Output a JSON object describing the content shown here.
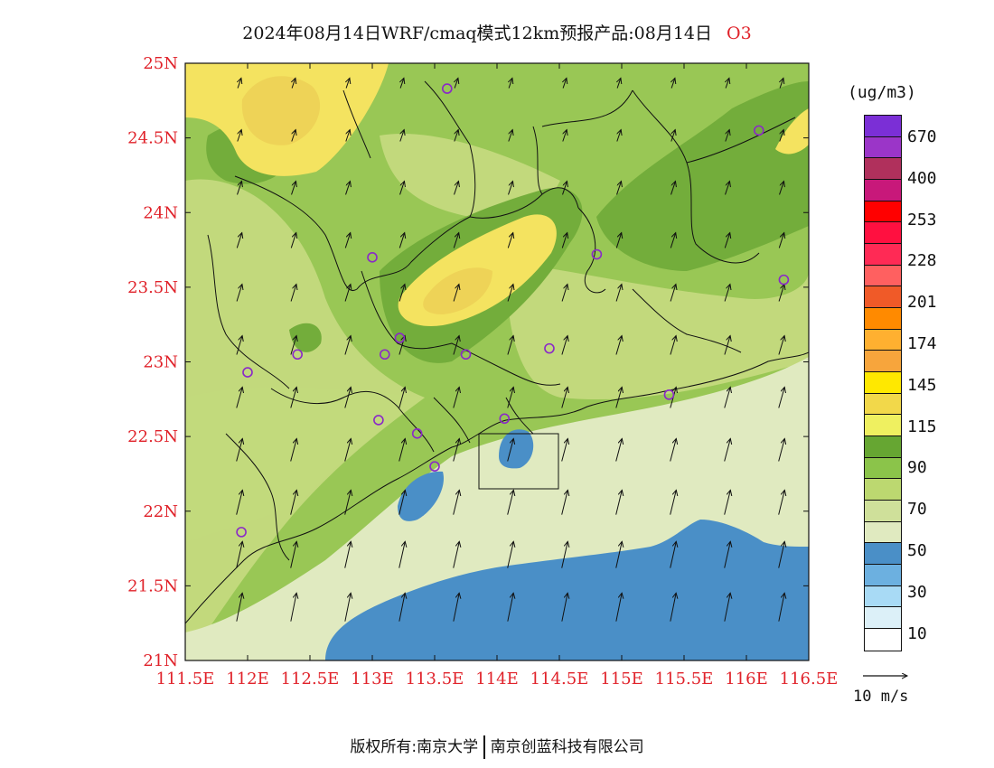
{
  "title": {
    "main": "2024年08月14日WRF/cmaq模式12km预报产品:08月14日",
    "species": "O3"
  },
  "axes": {
    "lat_labels": [
      "25N",
      "24.5N",
      "24N",
      "23.5N",
      "23N",
      "22.5N",
      "22N",
      "21.5N",
      "21N"
    ],
    "lon_labels": [
      "111.5E",
      "112E",
      "112.5E",
      "113E",
      "113.5E",
      "114E",
      "114.5E",
      "115E",
      "115.5E",
      "116E",
      "116.5E"
    ],
    "lat_range": [
      21,
      25
    ],
    "lon_range": [
      111.5,
      116.5
    ],
    "tick_label_color": "#e0222a"
  },
  "colorbar": {
    "unit": "(ug/m3)",
    "colors_top_to_bottom": [
      "#7b2fd6",
      "#9b35c8",
      "#b0305c",
      "#c8187a",
      "#ff0000",
      "#ff1040",
      "#ff2a55",
      "#ff6060",
      "#f05a28",
      "#ff8a00",
      "#ffb030",
      "#f7a53c",
      "#ffe800",
      "#f2d84a",
      "#eff060",
      "#66a632",
      "#8bc44a",
      "#bcd870",
      "#cfe09a",
      "#e0eac0",
      "#4a8fc7",
      "#6cb0e0",
      "#a8daf5",
      "#dcf0f8",
      "#ffffff"
    ],
    "labels": [
      "670",
      "400",
      "253",
      "228",
      "201",
      "174",
      "145",
      "115",
      "90",
      "70",
      "50",
      "30",
      "10"
    ]
  },
  "field_colors": {
    "yellow_high": "#f4e360",
    "yellow_core": "#eed357",
    "green_light": "#c2d97c",
    "green_mid": "#99c755",
    "green_dark": "#73ad3b",
    "pale_green": "#e0eac0",
    "sea_blue": "#4a8fc7",
    "station_ring": "#8a28c8"
  },
  "stations": [
    {
      "lon": 113.6,
      "lat": 24.83
    },
    {
      "lon": 116.1,
      "lat": 24.55
    },
    {
      "lon": 113.0,
      "lat": 23.7
    },
    {
      "lon": 114.8,
      "lat": 23.72
    },
    {
      "lon": 116.3,
      "lat": 23.55
    },
    {
      "lon": 113.22,
      "lat": 23.16
    },
    {
      "lon": 112.4,
      "lat": 23.05
    },
    {
      "lon": 113.1,
      "lat": 23.05
    },
    {
      "lon": 113.75,
      "lat": 23.05
    },
    {
      "lon": 114.42,
      "lat": 23.09
    },
    {
      "lon": 112.0,
      "lat": 22.93
    },
    {
      "lon": 115.38,
      "lat": 22.78
    },
    {
      "lon": 113.05,
      "lat": 22.61
    },
    {
      "lon": 113.36,
      "lat": 22.52
    },
    {
      "lon": 114.06,
      "lat": 22.62
    },
    {
      "lon": 113.5,
      "lat": 22.3
    },
    {
      "lon": 111.95,
      "lat": 21.86
    }
  ],
  "wind": {
    "reference_label": "10 m/s",
    "reference_speed": 10
  },
  "footer": {
    "left": "版权所有:南京大学",
    "right": "南京创蓝科技有限公司"
  }
}
